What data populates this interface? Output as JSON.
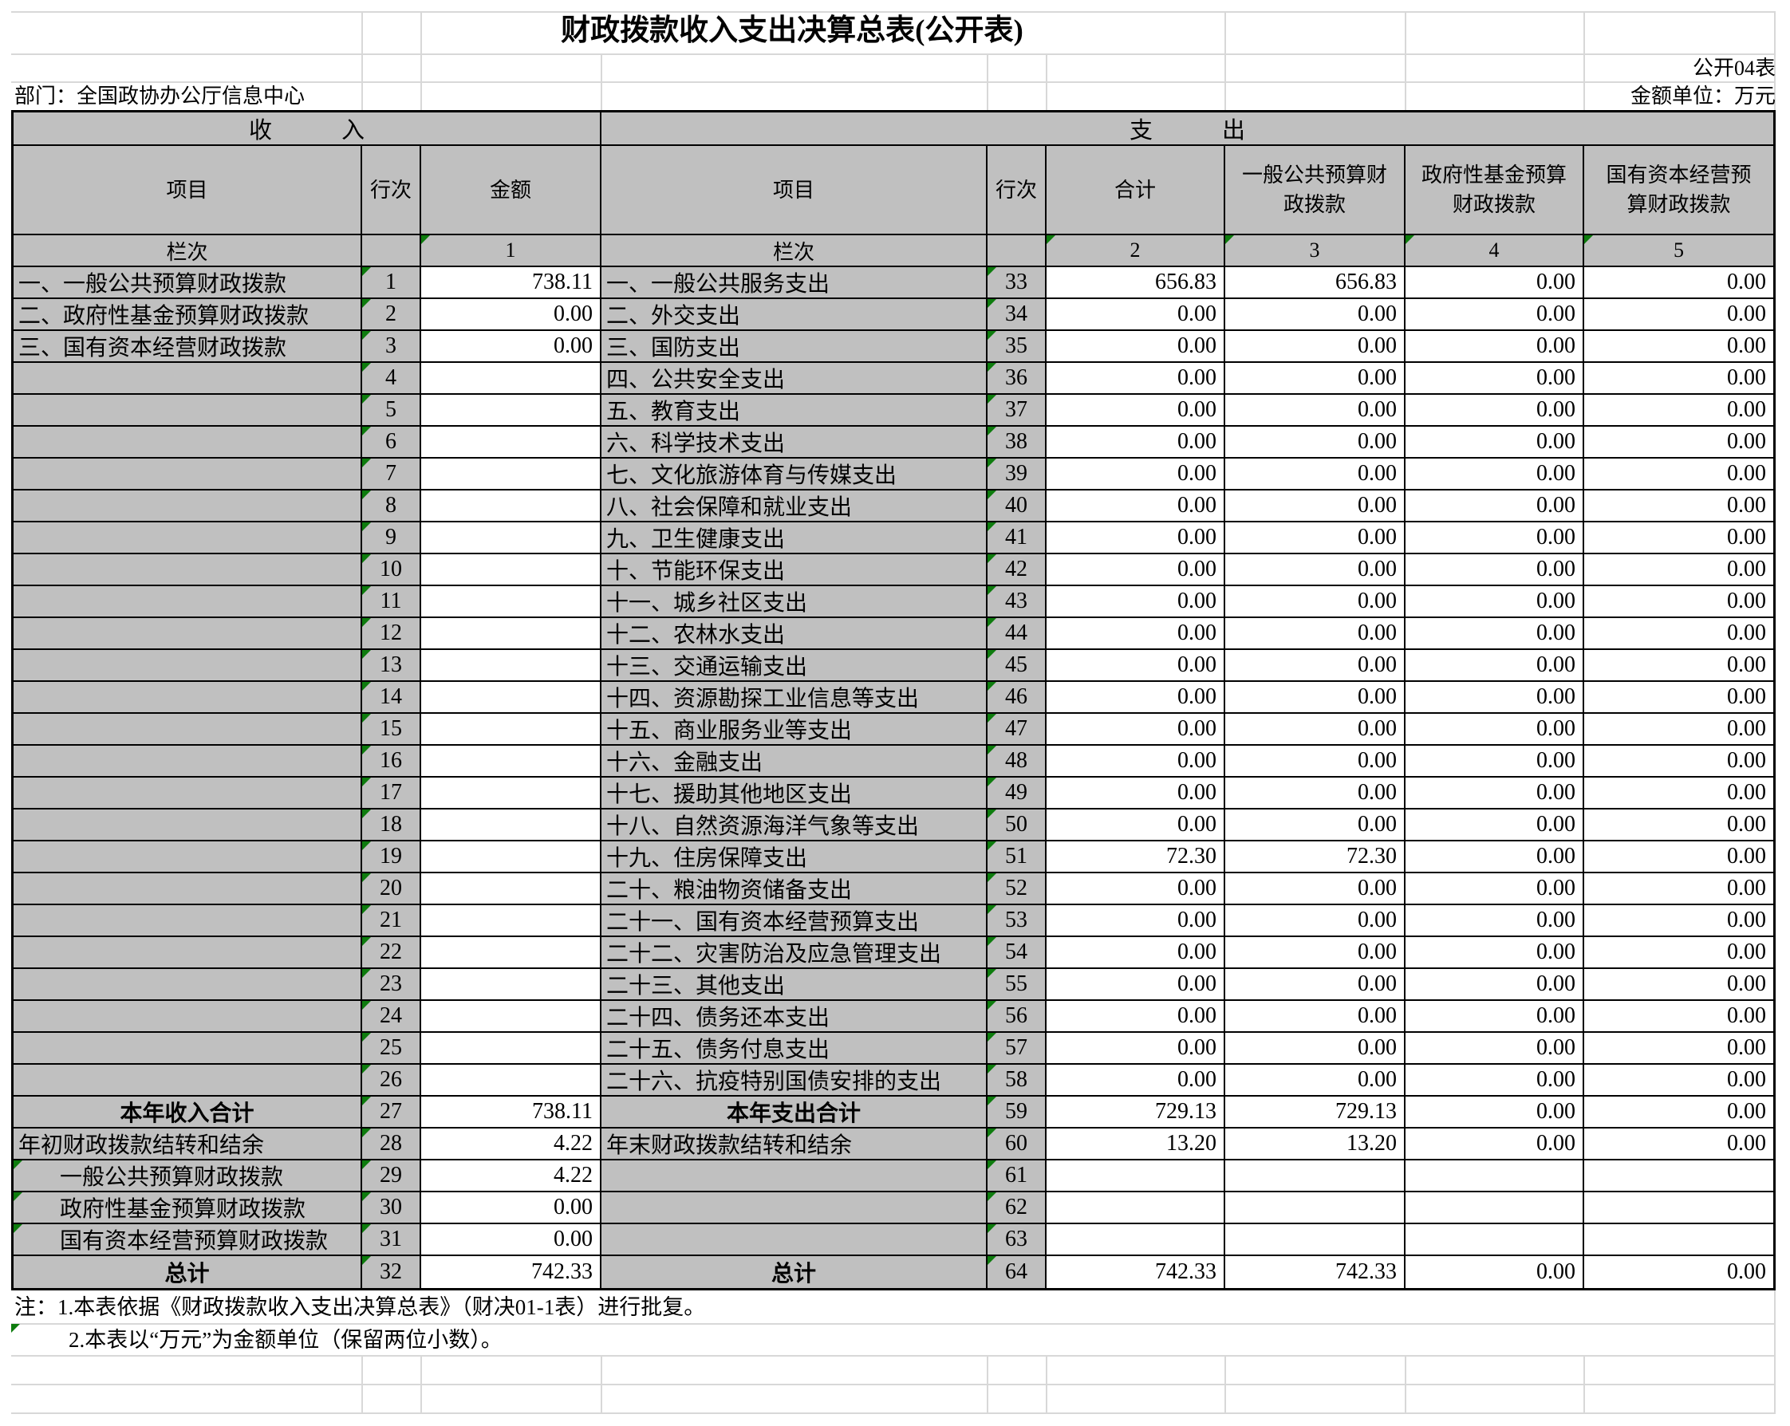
{
  "header": {
    "title": "财政拨款收入支出决算总表(公开表)",
    "form_no": "公开04表",
    "department": "部门：全国政协办公厅信息中心",
    "unit": "金额单位：万元",
    "income_band": "收　　　入",
    "expense_band": "支　　　出",
    "income_cols": {
      "item": "项目",
      "line": "行次",
      "amount": "金额"
    },
    "expense_cols": {
      "item": "项目",
      "line": "行次",
      "total": "合计",
      "general": "一般公共预算财\n政拨款",
      "govfund": "政府性基金预算\n财政拨款",
      "stateop": "国有资本经营预\n算财政拨款"
    },
    "lanci": {
      "label": "栏次",
      "c1": "1",
      "c2": "2",
      "c3": "3",
      "c4": "4",
      "c5": "5"
    }
  },
  "income_rows": [
    {
      "label": "一、一般公共预算财政拨款",
      "line": "1",
      "amount": "738.11"
    },
    {
      "label": "二、政府性基金预算财政拨款",
      "line": "2",
      "amount": "0.00"
    },
    {
      "label": "三、国有资本经营财政拨款",
      "line": "3",
      "amount": "0.00"
    },
    {
      "label": "",
      "line": "4",
      "amount": ""
    },
    {
      "label": "",
      "line": "5",
      "amount": ""
    },
    {
      "label": "",
      "line": "6",
      "amount": ""
    },
    {
      "label": "",
      "line": "7",
      "amount": ""
    },
    {
      "label": "",
      "line": "8",
      "amount": ""
    },
    {
      "label": "",
      "line": "9",
      "amount": ""
    },
    {
      "label": "",
      "line": "10",
      "amount": ""
    },
    {
      "label": "",
      "line": "11",
      "amount": ""
    },
    {
      "label": "",
      "line": "12",
      "amount": ""
    },
    {
      "label": "",
      "line": "13",
      "amount": ""
    },
    {
      "label": "",
      "line": "14",
      "amount": ""
    },
    {
      "label": "",
      "line": "15",
      "amount": ""
    },
    {
      "label": "",
      "line": "16",
      "amount": ""
    },
    {
      "label": "",
      "line": "17",
      "amount": ""
    },
    {
      "label": "",
      "line": "18",
      "amount": ""
    },
    {
      "label": "",
      "line": "19",
      "amount": ""
    },
    {
      "label": "",
      "line": "20",
      "amount": ""
    },
    {
      "label": "",
      "line": "21",
      "amount": ""
    },
    {
      "label": "",
      "line": "22",
      "amount": ""
    },
    {
      "label": "",
      "line": "23",
      "amount": ""
    },
    {
      "label": "",
      "line": "24",
      "amount": ""
    },
    {
      "label": "",
      "line": "25",
      "amount": ""
    },
    {
      "label": "",
      "line": "26",
      "amount": ""
    },
    {
      "label": "本年收入合计",
      "line": "27",
      "amount": "738.11",
      "bold": true
    },
    {
      "label": "年初财政拨款结转和结余",
      "line": "28",
      "amount": "4.22"
    },
    {
      "label": "一般公共预算财政拨款",
      "line": "29",
      "amount": "4.22",
      "indent": true,
      "flag": true
    },
    {
      "label": "政府性基金预算财政拨款",
      "line": "30",
      "amount": "0.00",
      "indent": true,
      "flag": true
    },
    {
      "label": "国有资本经营预算财政拨款",
      "line": "31",
      "amount": "0.00",
      "indent": true,
      "flag": true
    },
    {
      "label": "总计",
      "line": "32",
      "amount": "742.33",
      "bold": true
    }
  ],
  "expense_rows": [
    {
      "label": "一、一般公共服务支出",
      "line": "33",
      "total": "656.83",
      "general": "656.83",
      "govfund": "0.00",
      "stateop": "0.00"
    },
    {
      "label": "二、外交支出",
      "line": "34",
      "total": "0.00",
      "general": "0.00",
      "govfund": "0.00",
      "stateop": "0.00"
    },
    {
      "label": "三、国防支出",
      "line": "35",
      "total": "0.00",
      "general": "0.00",
      "govfund": "0.00",
      "stateop": "0.00"
    },
    {
      "label": "四、公共安全支出",
      "line": "36",
      "total": "0.00",
      "general": "0.00",
      "govfund": "0.00",
      "stateop": "0.00"
    },
    {
      "label": "五、教育支出",
      "line": "37",
      "total": "0.00",
      "general": "0.00",
      "govfund": "0.00",
      "stateop": "0.00"
    },
    {
      "label": "六、科学技术支出",
      "line": "38",
      "total": "0.00",
      "general": "0.00",
      "govfund": "0.00",
      "stateop": "0.00"
    },
    {
      "label": "七、文化旅游体育与传媒支出",
      "line": "39",
      "total": "0.00",
      "general": "0.00",
      "govfund": "0.00",
      "stateop": "0.00"
    },
    {
      "label": "八、社会保障和就业支出",
      "line": "40",
      "total": "0.00",
      "general": "0.00",
      "govfund": "0.00",
      "stateop": "0.00"
    },
    {
      "label": "九、卫生健康支出",
      "line": "41",
      "total": "0.00",
      "general": "0.00",
      "govfund": "0.00",
      "stateop": "0.00"
    },
    {
      "label": "十、节能环保支出",
      "line": "42",
      "total": "0.00",
      "general": "0.00",
      "govfund": "0.00",
      "stateop": "0.00"
    },
    {
      "label": "十一、城乡社区支出",
      "line": "43",
      "total": "0.00",
      "general": "0.00",
      "govfund": "0.00",
      "stateop": "0.00"
    },
    {
      "label": "十二、农林水支出",
      "line": "44",
      "total": "0.00",
      "general": "0.00",
      "govfund": "0.00",
      "stateop": "0.00"
    },
    {
      "label": "十三、交通运输支出",
      "line": "45",
      "total": "0.00",
      "general": "0.00",
      "govfund": "0.00",
      "stateop": "0.00"
    },
    {
      "label": "十四、资源勘探工业信息等支出",
      "line": "46",
      "total": "0.00",
      "general": "0.00",
      "govfund": "0.00",
      "stateop": "0.00"
    },
    {
      "label": "十五、商业服务业等支出",
      "line": "47",
      "total": "0.00",
      "general": "0.00",
      "govfund": "0.00",
      "stateop": "0.00"
    },
    {
      "label": "十六、金融支出",
      "line": "48",
      "total": "0.00",
      "general": "0.00",
      "govfund": "0.00",
      "stateop": "0.00"
    },
    {
      "label": "十七、援助其他地区支出",
      "line": "49",
      "total": "0.00",
      "general": "0.00",
      "govfund": "0.00",
      "stateop": "0.00"
    },
    {
      "label": "十八、自然资源海洋气象等支出",
      "line": "50",
      "total": "0.00",
      "general": "0.00",
      "govfund": "0.00",
      "stateop": "0.00"
    },
    {
      "label": "十九、住房保障支出",
      "line": "51",
      "total": "72.30",
      "general": "72.30",
      "govfund": "0.00",
      "stateop": "0.00"
    },
    {
      "label": "二十、粮油物资储备支出",
      "line": "52",
      "total": "0.00",
      "general": "0.00",
      "govfund": "0.00",
      "stateop": "0.00"
    },
    {
      "label": "二十一、国有资本经营预算支出",
      "line": "53",
      "total": "0.00",
      "general": "0.00",
      "govfund": "0.00",
      "stateop": "0.00"
    },
    {
      "label": "二十二、灾害防治及应急管理支出",
      "line": "54",
      "total": "0.00",
      "general": "0.00",
      "govfund": "0.00",
      "stateop": "0.00"
    },
    {
      "label": "二十三、其他支出",
      "line": "55",
      "total": "0.00",
      "general": "0.00",
      "govfund": "0.00",
      "stateop": "0.00"
    },
    {
      "label": "二十四、债务还本支出",
      "line": "56",
      "total": "0.00",
      "general": "0.00",
      "govfund": "0.00",
      "stateop": "0.00"
    },
    {
      "label": "二十五、债务付息支出",
      "line": "57",
      "total": "0.00",
      "general": "0.00",
      "govfund": "0.00",
      "stateop": "0.00"
    },
    {
      "label": "二十六、抗疫特别国债安排的支出",
      "line": "58",
      "total": "0.00",
      "general": "0.00",
      "govfund": "0.00",
      "stateop": "0.00"
    },
    {
      "label": "本年支出合计",
      "line": "59",
      "total": "729.13",
      "general": "729.13",
      "govfund": "0.00",
      "stateop": "0.00",
      "bold": true
    },
    {
      "label": "年末财政拨款结转和结余",
      "line": "60",
      "total": "13.20",
      "general": "13.20",
      "govfund": "0.00",
      "stateop": "0.00"
    },
    {
      "label": "",
      "line": "61",
      "total": "",
      "general": "",
      "govfund": "",
      "stateop": ""
    },
    {
      "label": "",
      "line": "62",
      "total": "",
      "general": "",
      "govfund": "",
      "stateop": ""
    },
    {
      "label": "",
      "line": "63",
      "total": "",
      "general": "",
      "govfund": "",
      "stateop": ""
    },
    {
      "label": "总计",
      "line": "64",
      "total": "742.33",
      "general": "742.33",
      "govfund": "0.00",
      "stateop": "0.00",
      "bold": true
    }
  ],
  "notes": {
    "note1": "注：1.本表依据《财政拨款收入支出决算总表》（财决01-1表）进行批复。",
    "note2": "2.本表以“万元”为金额单位（保留两位小数）。"
  },
  "colors": {
    "header_fill": "#c0c0c0",
    "grid_light": "#d8d8d8",
    "flag_green": "#0e7c0e",
    "border_black": "#000000"
  }
}
